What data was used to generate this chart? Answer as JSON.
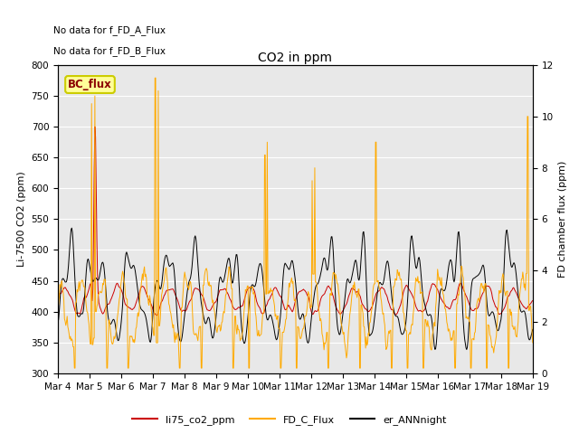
{
  "title": "CO2 in ppm",
  "ylabel_left": "Li-7500 CO2 (ppm)",
  "ylabel_right": "FD chamber flux (ppm)",
  "ylim_left": [
    300,
    800
  ],
  "ylim_right": [
    0,
    12
  ],
  "text_annotations": [
    "No data for f_FD_A_Flux",
    "No data for f_FD_B_Flux"
  ],
  "bc_flux_label": "BC_flux",
  "legend_labels": [
    "li75_co2_ppm",
    "FD_C_Flux",
    "er_ANNnight"
  ],
  "line_colors": [
    "#cc0000",
    "#ffaa00",
    "#000000"
  ],
  "background_color": "#e8e8e8",
  "xtick_labels": [
    "Mar 4",
    "Mar 5",
    "Mar 6",
    "Mar 7",
    "Mar 8",
    "Mar 9",
    "Mar 10",
    "Mar 11",
    "Mar 12",
    "Mar 13",
    "Mar 14",
    "Mar 15",
    "Mar 16",
    "Mar 17",
    "Mar 18",
    "Mar 19"
  ],
  "yticks_left": [
    300,
    350,
    400,
    450,
    500,
    550,
    600,
    650,
    700,
    750,
    800
  ],
  "yticks_right": [
    0,
    2,
    4,
    6,
    8,
    10,
    12
  ]
}
